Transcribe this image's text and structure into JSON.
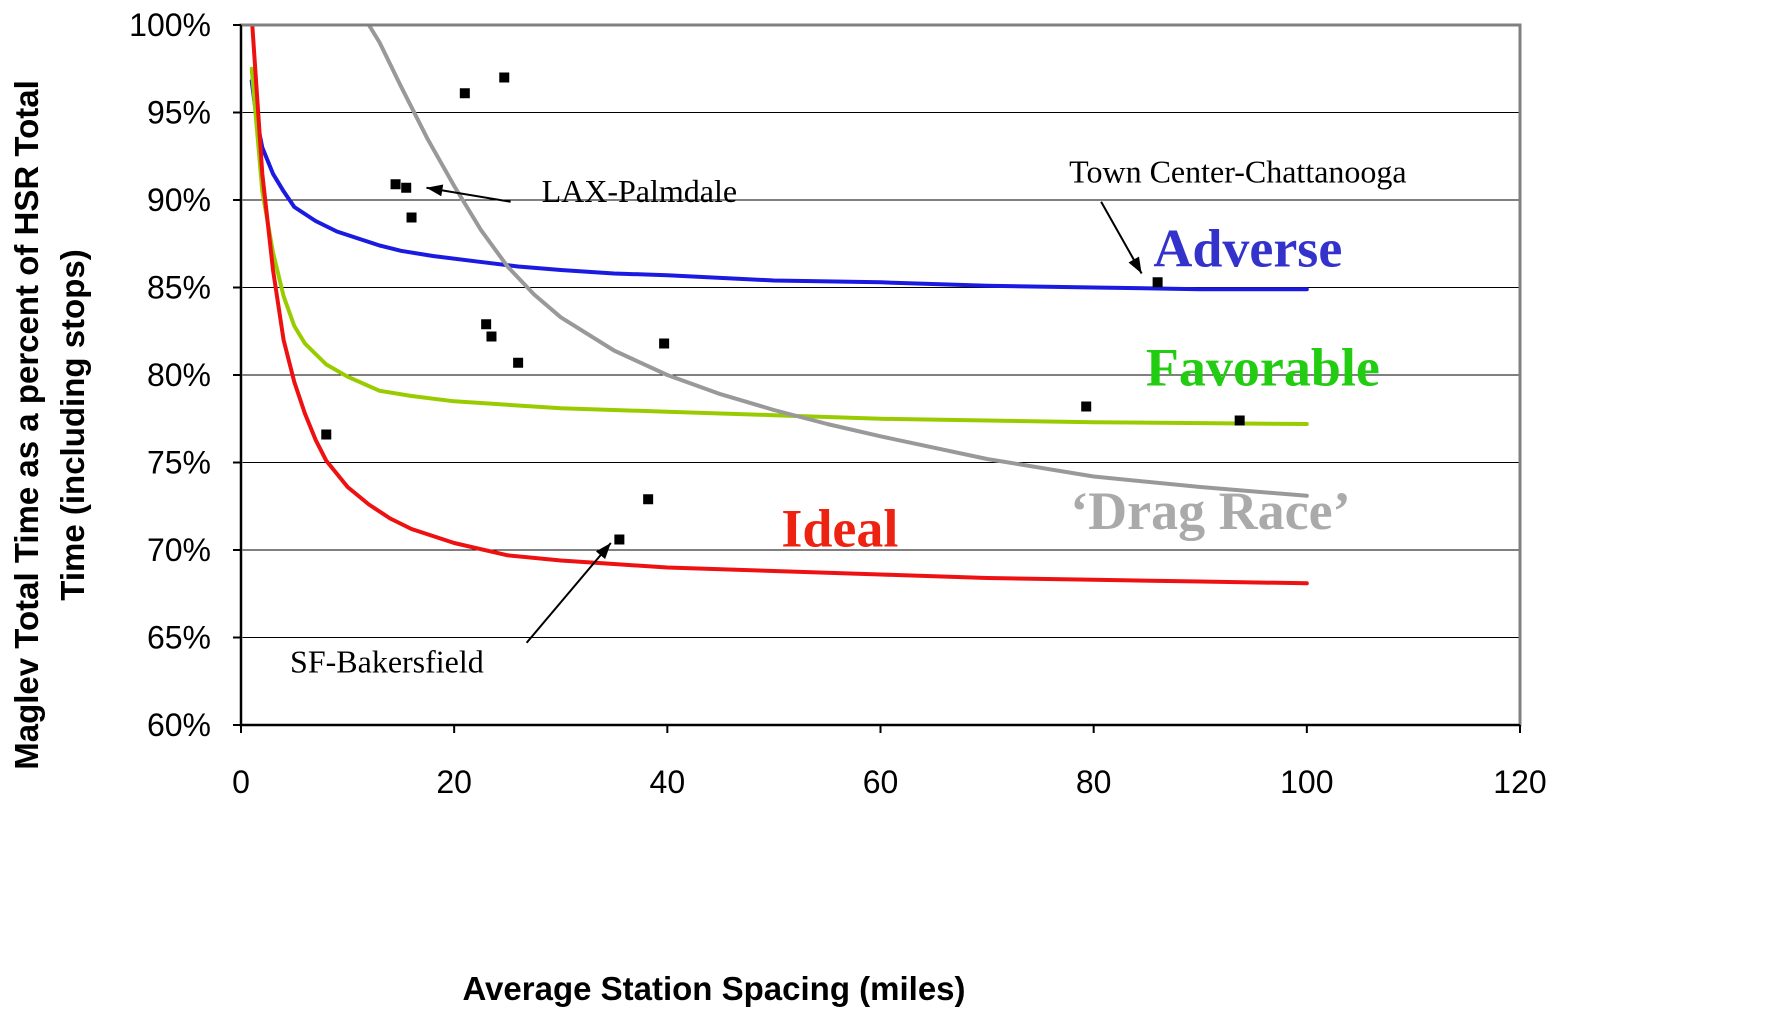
{
  "chart_data": {
    "type": "line",
    "xlabel": "Average Station Spacing (miles)",
    "ylabel_line1": "Maglev Total Time as a percent of HSR Total",
    "ylabel_line2": "Time (including stops)",
    "xlim": [
      0,
      120
    ],
    "ylim": [
      60,
      100
    ],
    "x_ticks": [
      0,
      20,
      40,
      60,
      80,
      100,
      120
    ],
    "y_ticks": [
      60,
      65,
      70,
      75,
      80,
      85,
      90,
      95,
      100
    ],
    "x_tick_labels": [
      "0",
      "20",
      "40",
      "60",
      "80",
      "100",
      "120"
    ],
    "y_tick_labels": [
      "60%",
      "65%",
      "70%",
      "75%",
      "80%",
      "85%",
      "90%",
      "95%",
      "100%"
    ],
    "grid": "horizontal",
    "series": [
      {
        "name": "Adverse",
        "color": "#1a1ae0",
        "points": [
          [
            1,
            96.8
          ],
          [
            1.5,
            94.5
          ],
          [
            2,
            93
          ],
          [
            3,
            91.5
          ],
          [
            4,
            90.5
          ],
          [
            5,
            89.6
          ],
          [
            7,
            88.8
          ],
          [
            9,
            88.2
          ],
          [
            11,
            87.8
          ],
          [
            13,
            87.4
          ],
          [
            15,
            87.1
          ],
          [
            18,
            86.8
          ],
          [
            22,
            86.5
          ],
          [
            26,
            86.2
          ],
          [
            30,
            86.0
          ],
          [
            35,
            85.8
          ],
          [
            40,
            85.7
          ],
          [
            50,
            85.4
          ],
          [
            60,
            85.3
          ],
          [
            70,
            85.1
          ],
          [
            80,
            85.0
          ],
          [
            90,
            84.9
          ],
          [
            100,
            84.9
          ]
        ]
      },
      {
        "name": "Favorable",
        "color": "#99cc00",
        "points": [
          [
            1,
            97.5
          ],
          [
            1.5,
            94
          ],
          [
            2,
            90.5
          ],
          [
            3,
            87
          ],
          [
            4,
            84.5
          ],
          [
            5,
            82.8
          ],
          [
            6,
            81.8
          ],
          [
            8,
            80.6
          ],
          [
            10,
            79.9
          ],
          [
            13,
            79.1
          ],
          [
            16,
            78.8
          ],
          [
            20,
            78.5
          ],
          [
            25,
            78.3
          ],
          [
            30,
            78.1
          ],
          [
            40,
            77.9
          ],
          [
            50,
            77.7
          ],
          [
            60,
            77.5
          ],
          [
            70,
            77.4
          ],
          [
            80,
            77.3
          ],
          [
            90,
            77.25
          ],
          [
            100,
            77.2
          ]
        ]
      },
      {
        "name": "Ideal",
        "color": "#ee1111",
        "points": [
          [
            1,
            100.5
          ],
          [
            1.5,
            96
          ],
          [
            2,
            91.5
          ],
          [
            3,
            86
          ],
          [
            4,
            82
          ],
          [
            5,
            79.6
          ],
          [
            6,
            77.8
          ],
          [
            7,
            76.3
          ],
          [
            8,
            75.1
          ],
          [
            10,
            73.6
          ],
          [
            12,
            72.6
          ],
          [
            14,
            71.8
          ],
          [
            16,
            71.2
          ],
          [
            20,
            70.4
          ],
          [
            25,
            69.7
          ],
          [
            30,
            69.4
          ],
          [
            35,
            69.2
          ],
          [
            40,
            69.0
          ],
          [
            50,
            68.8
          ],
          [
            60,
            68.6
          ],
          [
            70,
            68.4
          ],
          [
            80,
            68.3
          ],
          [
            90,
            68.2
          ],
          [
            100,
            68.1
          ]
        ]
      },
      {
        "name": "‘Drag Race’",
        "color": "#999999",
        "points": [
          [
            11.5,
            100.5
          ],
          [
            13,
            99
          ],
          [
            15,
            96.5
          ],
          [
            17.5,
            93.5
          ],
          [
            20,
            90.8
          ],
          [
            22.5,
            88.3
          ],
          [
            25,
            86.2
          ],
          [
            27.5,
            84.6
          ],
          [
            30,
            83.3
          ],
          [
            35,
            81.4
          ],
          [
            40,
            80.0
          ],
          [
            45,
            78.9
          ],
          [
            50,
            78.0
          ],
          [
            55,
            77.2
          ],
          [
            60,
            76.5
          ],
          [
            70,
            75.2
          ],
          [
            80,
            74.2
          ],
          [
            90,
            73.6
          ],
          [
            100,
            73.1
          ]
        ]
      }
    ],
    "markers": [
      [
        8,
        76.6
      ],
      [
        14.5,
        90.9
      ],
      [
        15.5,
        90.7
      ],
      [
        16,
        89.0
      ],
      [
        21,
        96.1
      ],
      [
        24.7,
        97.0
      ],
      [
        23,
        82.9
      ],
      [
        23.5,
        82.2
      ],
      [
        26,
        80.7
      ],
      [
        35.5,
        70.6
      ],
      [
        38.2,
        72.9
      ],
      [
        39.7,
        81.8
      ],
      [
        79.3,
        78.2
      ],
      [
        86,
        85.3
      ],
      [
        93.7,
        77.4
      ]
    ],
    "series_labels": [
      {
        "text": "Adverse",
        "color": "#3333cc",
        "x": 85.6,
        "y": 86.2
      },
      {
        "text": "Favorable",
        "color": "#22cc11",
        "x": 84.9,
        "y": 79.4
      },
      {
        "text": "Ideal",
        "color": "#ee2211",
        "x": 50.7,
        "y": 70.2
      },
      {
        "text": "‘Drag Race’",
        "color": "#aaaaaa",
        "x": 77.8,
        "y": 71.2
      }
    ],
    "annotations": [
      {
        "text": "LAX-Palmdale",
        "tx": 28.2,
        "ty": 89.9,
        "from": [
          25.3,
          89.9
        ],
        "to": [
          17.4,
          90.7
        ]
      },
      {
        "text": "Town Center-Chattanooga",
        "tx": 77.7,
        "ty": 91.0,
        "from": [
          80.7,
          89.9
        ],
        "to": [
          84.5,
          85.8
        ]
      },
      {
        "text": "SF-Bakersfield",
        "tx": 4.6,
        "ty": 63.0,
        "from": [
          26.8,
          64.7
        ],
        "to": [
          34.7,
          70.4
        ]
      }
    ]
  }
}
